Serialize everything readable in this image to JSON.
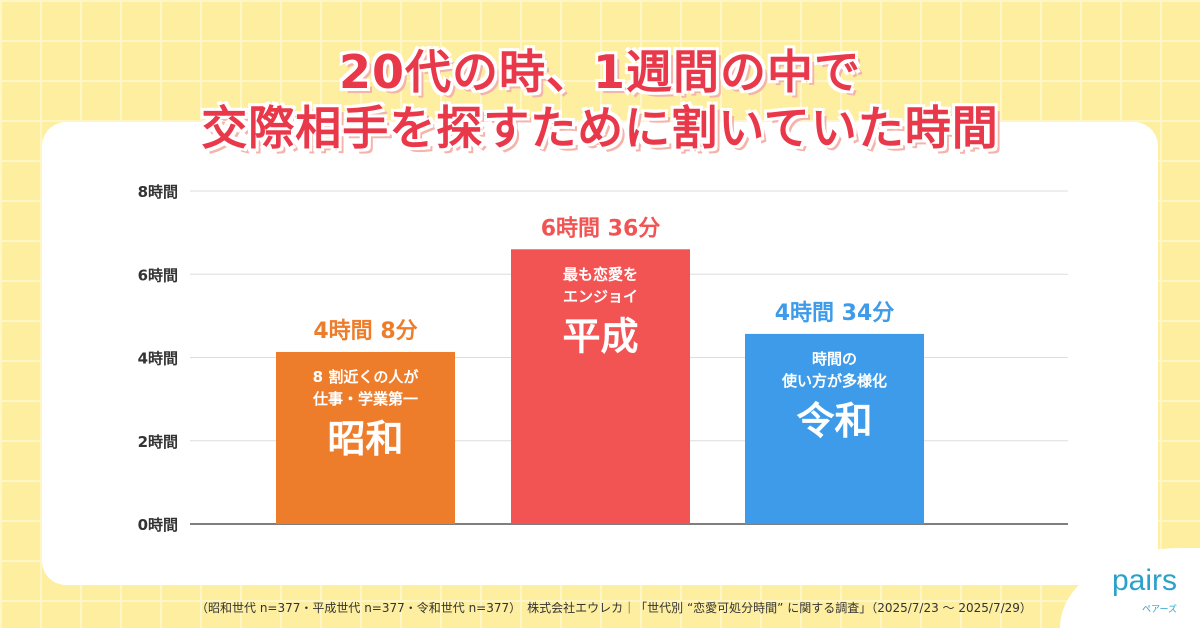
{
  "chart_data": {
    "type": "bar",
    "title": "20代の時、1週間の中で 交際相手を探すために割いていた時間",
    "title_lines": [
      "20代の時、1週間の中で",
      "交際相手を探すために割いていた時間"
    ],
    "categories": [
      "昭和",
      "平成",
      "令和"
    ],
    "values": [
      4.133,
      6.6,
      4.567
    ],
    "unit": "時間",
    "data_labels": [
      "4時間 8分",
      "6時間 36分",
      "4時間 34分"
    ],
    "bar_notes": [
      [
        "8 割近くの人が",
        "仕事・学業第一"
      ],
      [
        "最も恋愛を",
        "エンジョイ"
      ],
      [
        "時間の",
        "使い方が多様化"
      ]
    ],
    "colors": [
      "#ee7d2b",
      "#f25353",
      "#3d9be9"
    ],
    "ylim": [
      0,
      8
    ],
    "yticks": [
      0,
      2,
      4,
      6,
      8
    ],
    "ytick_labels": [
      "0時間",
      "2時間",
      "4時間",
      "6時間",
      "8時間"
    ],
    "grid": true
  },
  "footer": "（昭和世代 n=377・平成世代 n=377・令和世代 n=377）　株式会社エウレカ｜「世代別 “恋愛可処分時間” に関する調査」（2025/7/23 ～ 2025/7/29）",
  "logo": {
    "name": "pairs",
    "sub": "ペアーズ"
  }
}
